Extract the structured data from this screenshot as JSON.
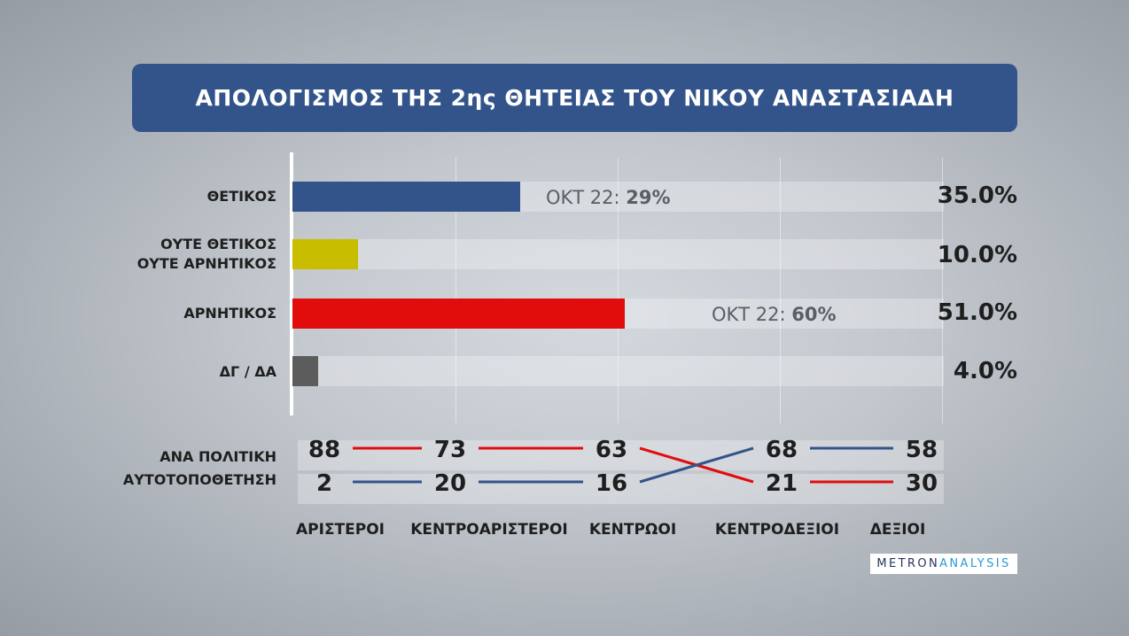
{
  "title": "ΑΠΟΛΟΓΙΣΜΟΣ ΤΗΣ 2ης ΘΗΤΕΙΑΣ ΤΟΥ ΝΙΚΟΥ ΑΝΑΣΤΑΣΙΑΔΗ",
  "colors": {
    "title_bg": "#33548a",
    "positive": "#33548a",
    "neutral": "#c9bd00",
    "negative": "#e10d0d",
    "dk": "#5c5c5c"
  },
  "chart_data": [
    {
      "type": "bar",
      "orientation": "horizontal",
      "categories": [
        "ΘΕΤΙΚΟΣ",
        "ΟΥΤΕ ΘΕΤΙΚΟΣ ΟΥΤΕ ΑΡΝΗΤΙΚΟΣ",
        "ΑΡΝΗΤΙΚΟΣ",
        "ΔΓ / ΔΑ"
      ],
      "category_lines": [
        [
          "ΘΕΤΙΚΟΣ"
        ],
        [
          "ΟΥΤΕ ΘΕΤΙΚΟΣ",
          "ΟΥΤΕ ΑΡΝΗΤΙΚΟΣ"
        ],
        [
          "ΑΡΝΗΤΙΚΟΣ"
        ],
        [
          "ΔΓ / ΔΑ"
        ]
      ],
      "values": [
        35.0,
        10.0,
        51.0,
        4.0
      ],
      "value_labels": [
        "35.0%",
        "10.0%",
        "51.0%",
        "4.0%"
      ],
      "bar_colors": [
        "#33548a",
        "#c9bd00",
        "#e10d0d",
        "#5c5c5c"
      ],
      "xlim": [
        0,
        100
      ],
      "comparisons": [
        {
          "category": "ΘΕΤΙΚΟΣ",
          "label": "ΟΚΤ 22:",
          "value": 29,
          "value_label": "29%"
        },
        {
          "category": "ΑΡΝΗΤΙΚΟΣ",
          "label": "ΟΚΤ 22:",
          "value": 60,
          "value_label": "60%"
        }
      ]
    },
    {
      "type": "line",
      "row_label": [
        "ΑΝΑ ΠΟΛΙΤΙΚΗ",
        "ΑΥΤΟΤΟΠΟΘΕΤΗΣΗ"
      ],
      "categories": [
        "ΑΡΙΣΤΕΡΟΙ",
        "ΚΕΝΤΡΟΑΡΙΣΤΕΡΟΙ",
        "ΚΕΝΤΡΩΟΙ",
        "ΚΕΝΤΡΟΔΕΞΙΟΙ",
        "ΔΕΞΙΟΙ"
      ],
      "series": [
        {
          "color": "#e10d0d",
          "values": [
            88,
            73,
            63,
            21,
            30
          ]
        },
        {
          "color": "#33548a",
          "values": [
            2,
            20,
            16,
            68,
            58
          ]
        }
      ]
    }
  ],
  "logo": {
    "part1": "METRON",
    "part2": "ANALYSIS"
  }
}
